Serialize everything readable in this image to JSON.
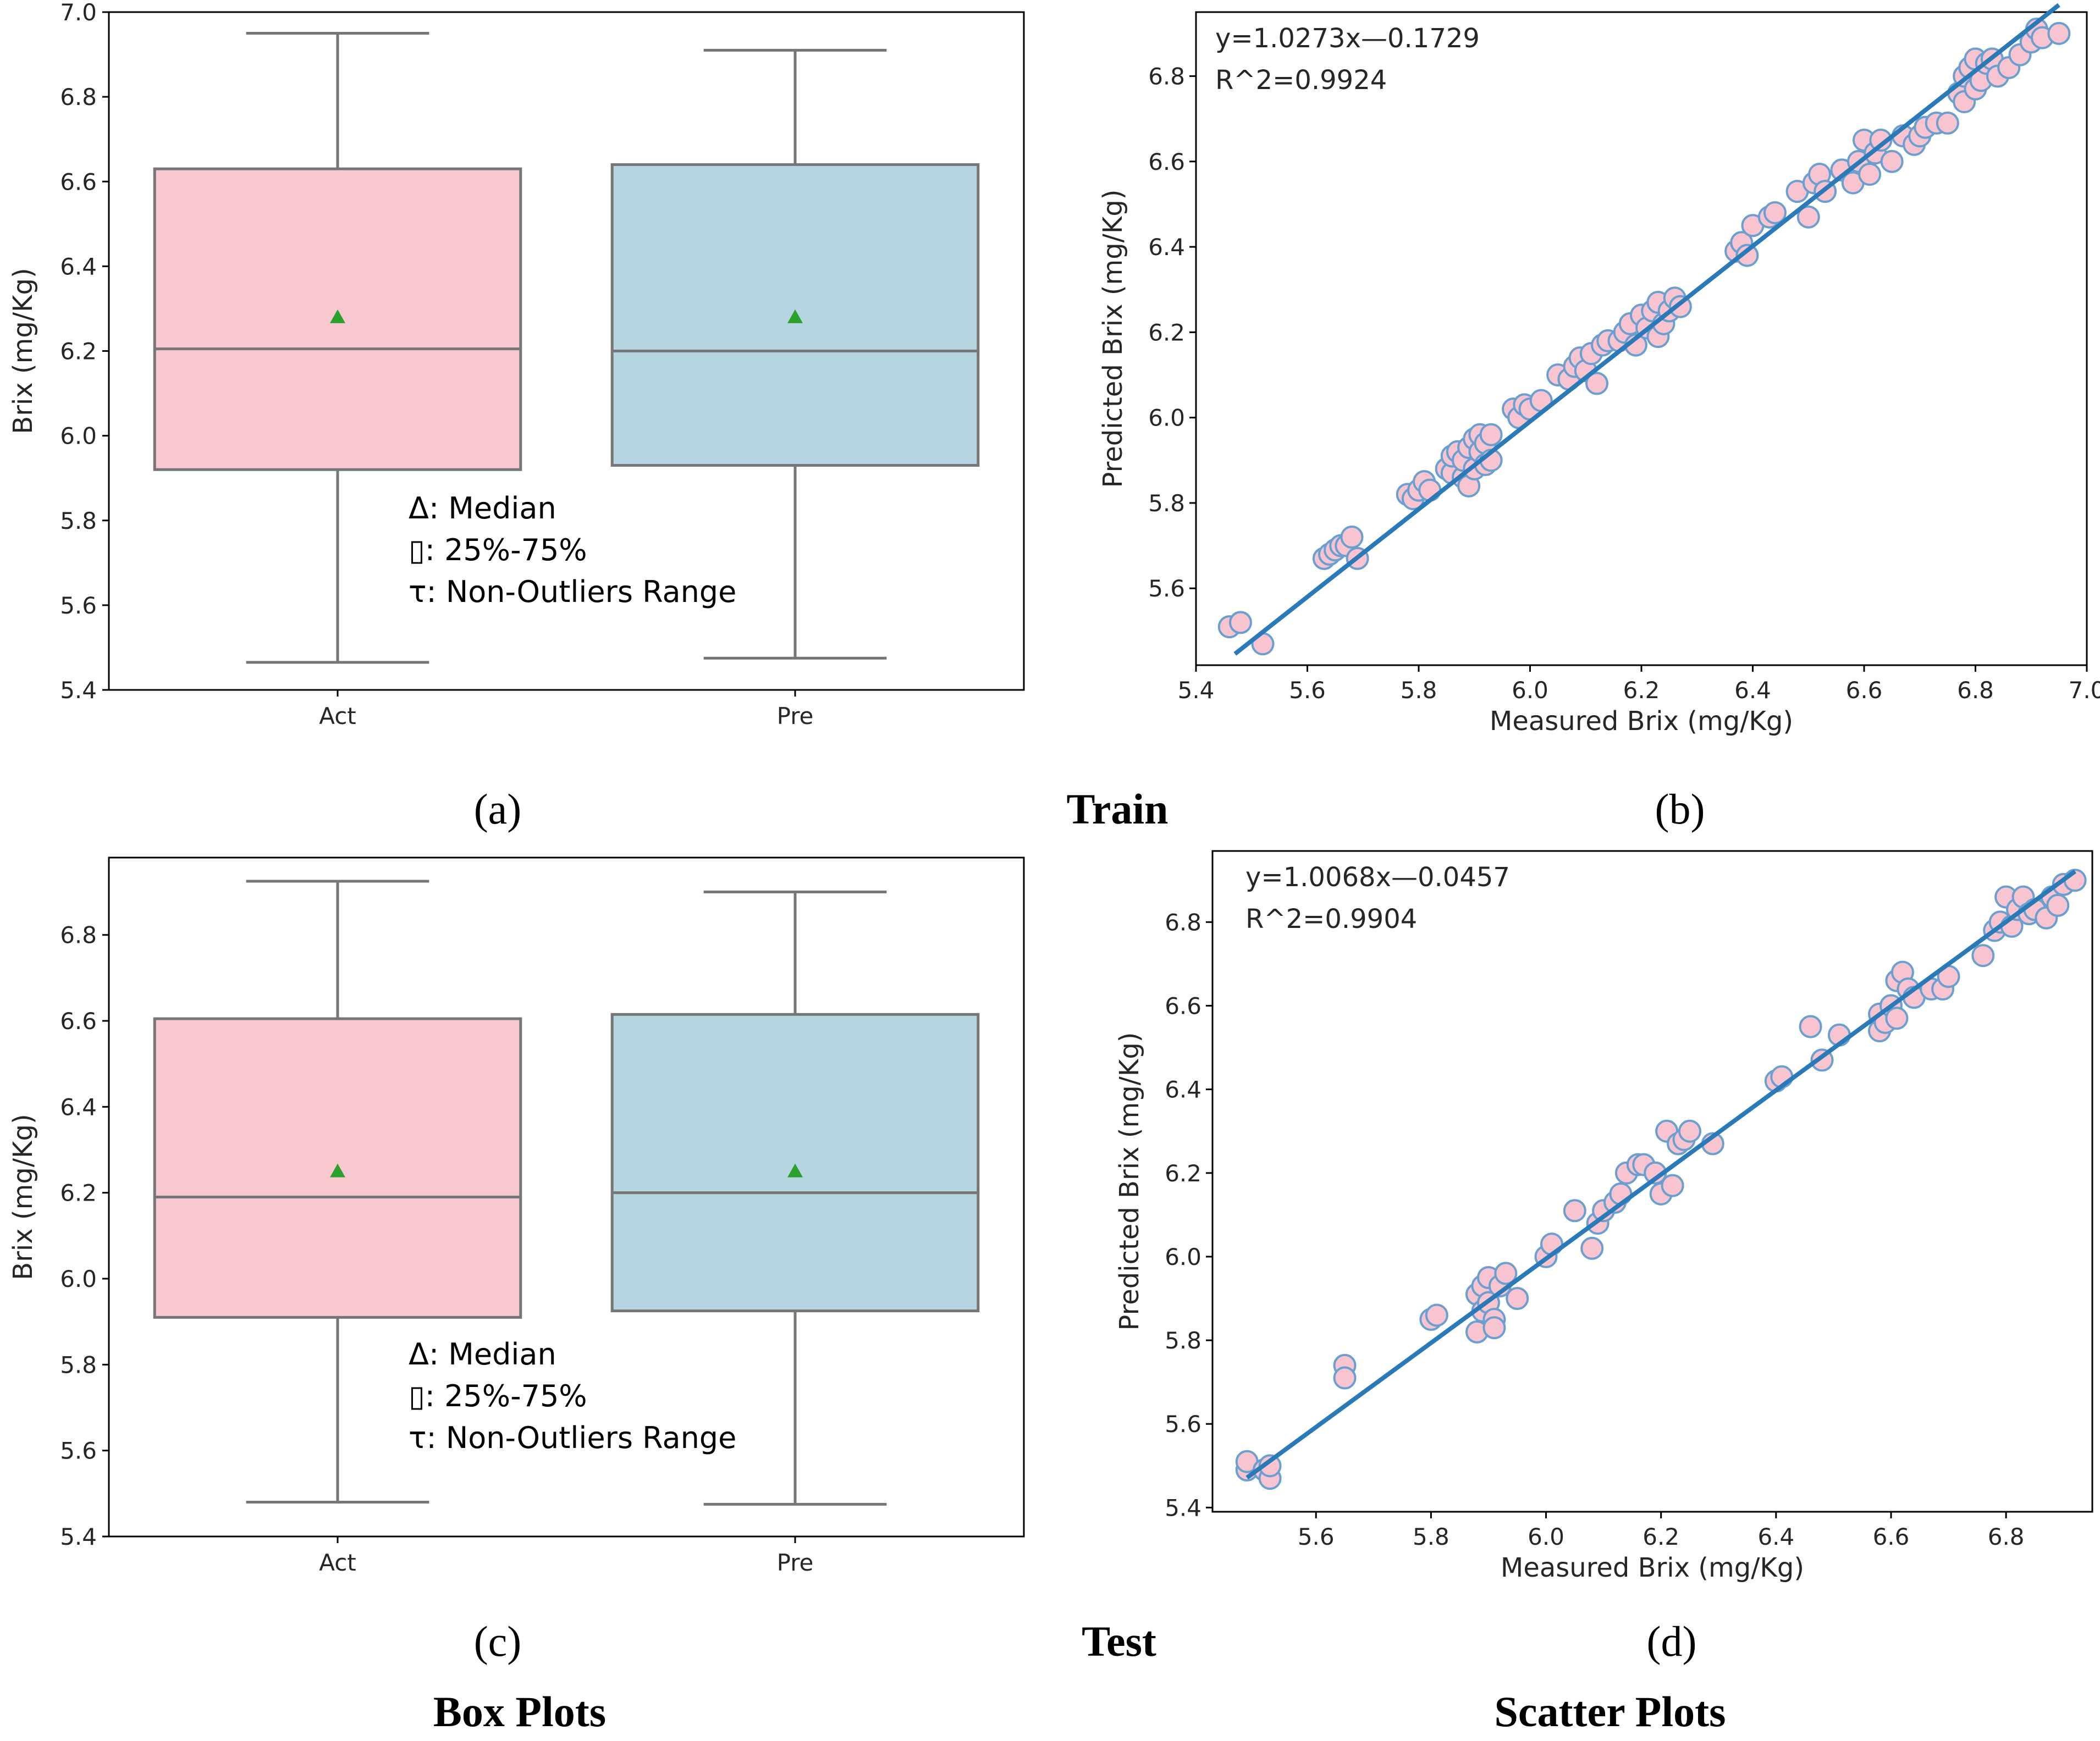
{
  "colors": {
    "act_box": "#f8c8d0",
    "pre_box": "#b5d6e0",
    "box_edge": "#767676",
    "mean_marker": "#2ca02c",
    "fit_line": "#2a7ab8",
    "scatter_fill": "#f8c4cf",
    "scatter_edge": "#6a9fd0"
  },
  "captions": {
    "a": "(a)",
    "b": "(b)",
    "c": "(c)",
    "d": "(d)",
    "train": "Train",
    "test": "Test",
    "box_plots": "Box Plots",
    "scatter_plots": "Scatter Plots"
  },
  "chart_data": [
    {
      "id": "a",
      "type": "box",
      "ylabel": "Brix (mg/Kg)",
      "xlabel": "",
      "ylim": [
        5.4,
        7.0
      ],
      "yticks": [
        "5.4",
        "5.6",
        "5.8",
        "6.0",
        "6.2",
        "6.4",
        "6.6",
        "6.8",
        "7.0"
      ],
      "categories": [
        "Act",
        "Pre"
      ],
      "boxes": [
        {
          "name": "Act",
          "whisker_low": 5.465,
          "q1": 5.92,
          "median": 6.205,
          "q3": 6.63,
          "whisker_high": 6.95,
          "mean": 6.28,
          "color_key": "act_box"
        },
        {
          "name": "Pre",
          "whisker_low": 5.475,
          "q1": 5.93,
          "median": 6.2,
          "q3": 6.64,
          "whisker_high": 6.91,
          "mean": 6.28,
          "color_key": "pre_box"
        }
      ],
      "legend_lines": [
        "Δ: Median",
        "▯: 25%-75%",
        "τ: Non-Outliers Range"
      ]
    },
    {
      "id": "b",
      "type": "scatter",
      "xlabel": "Measured Brix (mg/Kg)",
      "ylabel": "Predicted Brix (mg/Kg)",
      "xlim": [
        5.4,
        7.0
      ],
      "ylim": [
        5.42,
        6.95
      ],
      "xticks": [
        "5.4",
        "5.6",
        "5.8",
        "6.0",
        "6.2",
        "6.4",
        "6.6",
        "6.8",
        "7.0"
      ],
      "yticks": [
        "5.6",
        "5.8",
        "6.0",
        "6.2",
        "6.4",
        "6.6",
        "6.8"
      ],
      "equation": "y=1.0273x—0.1729",
      "r2": "R^2=0.9924",
      "fit": {
        "slope": 1.0273,
        "intercept": -0.1729,
        "x_range": [
          5.47,
          6.95
        ]
      },
      "points": [
        [
          5.46,
          5.51
        ],
        [
          5.48,
          5.52
        ],
        [
          5.52,
          5.47
        ],
        [
          5.63,
          5.67
        ],
        [
          5.64,
          5.68
        ],
        [
          5.65,
          5.69
        ],
        [
          5.66,
          5.7
        ],
        [
          5.67,
          5.7
        ],
        [
          5.68,
          5.72
        ],
        [
          5.69,
          5.67
        ],
        [
          5.78,
          5.82
        ],
        [
          5.79,
          5.81
        ],
        [
          5.8,
          5.83
        ],
        [
          5.81,
          5.85
        ],
        [
          5.82,
          5.83
        ],
        [
          5.85,
          5.88
        ],
        [
          5.86,
          5.87
        ],
        [
          5.86,
          5.91
        ],
        [
          5.87,
          5.92
        ],
        [
          5.88,
          5.86
        ],
        [
          5.88,
          5.9
        ],
        [
          5.89,
          5.93
        ],
        [
          5.89,
          5.84
        ],
        [
          5.9,
          5.88
        ],
        [
          5.9,
          5.95
        ],
        [
          5.91,
          5.92
        ],
        [
          5.91,
          5.96
        ],
        [
          5.92,
          5.89
        ],
        [
          5.92,
          5.94
        ],
        [
          5.93,
          5.9
        ],
        [
          5.93,
          5.96
        ],
        [
          5.97,
          6.02
        ],
        [
          5.98,
          6.0
        ],
        [
          5.99,
          6.03
        ],
        [
          6.0,
          6.02
        ],
        [
          6.02,
          6.04
        ],
        [
          6.05,
          6.1
        ],
        [
          6.07,
          6.09
        ],
        [
          6.08,
          6.12
        ],
        [
          6.09,
          6.14
        ],
        [
          6.1,
          6.11
        ],
        [
          6.11,
          6.15
        ],
        [
          6.12,
          6.08
        ],
        [
          6.13,
          6.17
        ],
        [
          6.14,
          6.18
        ],
        [
          6.16,
          6.18
        ],
        [
          6.17,
          6.2
        ],
        [
          6.18,
          6.22
        ],
        [
          6.19,
          6.17
        ],
        [
          6.2,
          6.24
        ],
        [
          6.21,
          6.21
        ],
        [
          6.22,
          6.25
        ],
        [
          6.23,
          6.19
        ],
        [
          6.23,
          6.27
        ],
        [
          6.24,
          6.22
        ],
        [
          6.25,
          6.25
        ],
        [
          6.26,
          6.28
        ],
        [
          6.27,
          6.26
        ],
        [
          6.37,
          6.39
        ],
        [
          6.38,
          6.41
        ],
        [
          6.39,
          6.38
        ],
        [
          6.4,
          6.45
        ],
        [
          6.43,
          6.47
        ],
        [
          6.44,
          6.48
        ],
        [
          6.48,
          6.53
        ],
        [
          6.5,
          6.47
        ],
        [
          6.51,
          6.55
        ],
        [
          6.52,
          6.57
        ],
        [
          6.53,
          6.53
        ],
        [
          6.56,
          6.58
        ],
        [
          6.58,
          6.55
        ],
        [
          6.59,
          6.6
        ],
        [
          6.6,
          6.65
        ],
        [
          6.61,
          6.57
        ],
        [
          6.62,
          6.62
        ],
        [
          6.63,
          6.65
        ],
        [
          6.65,
          6.6
        ],
        [
          6.67,
          6.66
        ],
        [
          6.69,
          6.64
        ],
        [
          6.7,
          6.66
        ],
        [
          6.71,
          6.68
        ],
        [
          6.73,
          6.69
        ],
        [
          6.75,
          6.69
        ],
        [
          6.77,
          6.76
        ],
        [
          6.78,
          6.8
        ],
        [
          6.78,
          6.74
        ],
        [
          6.79,
          6.82
        ],
        [
          6.8,
          6.77
        ],
        [
          6.8,
          6.84
        ],
        [
          6.81,
          6.79
        ],
        [
          6.82,
          6.83
        ],
        [
          6.83,
          6.84
        ],
        [
          6.84,
          6.8
        ],
        [
          6.86,
          6.82
        ],
        [
          6.88,
          6.85
        ],
        [
          6.9,
          6.88
        ],
        [
          6.91,
          6.91
        ],
        [
          6.92,
          6.89
        ],
        [
          6.95,
          6.9
        ]
      ]
    },
    {
      "id": "c",
      "type": "box",
      "ylabel": "Brix (mg/Kg)",
      "xlabel": "",
      "ylim": [
        5.4,
        6.98
      ],
      "yticks": [
        "5.4",
        "5.6",
        "5.8",
        "6.0",
        "6.2",
        "6.4",
        "6.6",
        "6.8"
      ],
      "categories": [
        "Act",
        "Pre"
      ],
      "boxes": [
        {
          "name": "Act",
          "whisker_low": 5.48,
          "q1": 5.91,
          "median": 6.19,
          "q3": 6.605,
          "whisker_high": 6.925,
          "mean": 6.25,
          "color_key": "act_box"
        },
        {
          "name": "Pre",
          "whisker_low": 5.475,
          "q1": 5.925,
          "median": 6.2,
          "q3": 6.615,
          "whisker_high": 6.9,
          "mean": 6.25,
          "color_key": "pre_box"
        }
      ],
      "legend_lines": [
        "Δ: Median",
        "▯: 25%-75%",
        "τ: Non-Outliers Range"
      ]
    },
    {
      "id": "d",
      "type": "scatter",
      "xlabel": "Measured Brix (mg/Kg)",
      "ylabel": "Predicted Brix (mg/Kg)",
      "xlim": [
        5.42,
        6.95
      ],
      "ylim": [
        5.39,
        6.97
      ],
      "xticks": [
        "5.6",
        "5.8",
        "6.0",
        "6.2",
        "6.4",
        "6.6",
        "6.8"
      ],
      "yticks": [
        "5.4",
        "5.6",
        "5.8",
        "6.0",
        "6.2",
        "6.4",
        "6.6",
        "6.8"
      ],
      "equation": "y=1.0068x—0.0457",
      "r2": "R^2=0.9904",
      "fit": {
        "slope": 1.0068,
        "intercept": -0.0457,
        "x_range": [
          5.48,
          6.92
        ]
      },
      "points": [
        [
          5.48,
          5.49
        ],
        [
          5.48,
          5.51
        ],
        [
          5.51,
          5.49
        ],
        [
          5.52,
          5.47
        ],
        [
          5.52,
          5.5
        ],
        [
          5.65,
          5.74
        ],
        [
          5.65,
          5.71
        ],
        [
          5.8,
          5.85
        ],
        [
          5.81,
          5.86
        ],
        [
          5.88,
          5.82
        ],
        [
          5.88,
          5.91
        ],
        [
          5.89,
          5.87
        ],
        [
          5.89,
          5.93
        ],
        [
          5.9,
          5.89
        ],
        [
          5.9,
          5.95
        ],
        [
          5.91,
          5.85
        ],
        [
          5.91,
          5.83
        ],
        [
          5.92,
          5.93
        ],
        [
          5.93,
          5.96
        ],
        [
          5.95,
          5.9
        ],
        [
          6.0,
          6.0
        ],
        [
          6.01,
          6.03
        ],
        [
          6.05,
          6.11
        ],
        [
          6.08,
          6.02
        ],
        [
          6.09,
          6.08
        ],
        [
          6.1,
          6.11
        ],
        [
          6.12,
          6.13
        ],
        [
          6.13,
          6.15
        ],
        [
          6.14,
          6.2
        ],
        [
          6.16,
          6.22
        ],
        [
          6.17,
          6.22
        ],
        [
          6.19,
          6.2
        ],
        [
          6.2,
          6.15
        ],
        [
          6.21,
          6.3
        ],
        [
          6.22,
          6.17
        ],
        [
          6.23,
          6.27
        ],
        [
          6.24,
          6.28
        ],
        [
          6.25,
          6.3
        ],
        [
          6.29,
          6.27
        ],
        [
          6.4,
          6.42
        ],
        [
          6.41,
          6.43
        ],
        [
          6.46,
          6.55
        ],
        [
          6.48,
          6.47
        ],
        [
          6.51,
          6.53
        ],
        [
          6.58,
          6.54
        ],
        [
          6.58,
          6.58
        ],
        [
          6.59,
          6.56
        ],
        [
          6.6,
          6.6
        ],
        [
          6.61,
          6.57
        ],
        [
          6.61,
          6.66
        ],
        [
          6.62,
          6.68
        ],
        [
          6.63,
          6.64
        ],
        [
          6.64,
          6.62
        ],
        [
          6.67,
          6.64
        ],
        [
          6.69,
          6.64
        ],
        [
          6.7,
          6.67
        ],
        [
          6.76,
          6.72
        ],
        [
          6.78,
          6.78
        ],
        [
          6.79,
          6.8
        ],
        [
          6.8,
          6.86
        ],
        [
          6.81,
          6.79
        ],
        [
          6.82,
          6.83
        ],
        [
          6.83,
          6.86
        ],
        [
          6.84,
          6.82
        ],
        [
          6.85,
          6.83
        ],
        [
          6.87,
          6.81
        ],
        [
          6.88,
          6.86
        ],
        [
          6.89,
          6.84
        ],
        [
          6.9,
          6.89
        ],
        [
          6.92,
          6.9
        ]
      ]
    }
  ]
}
